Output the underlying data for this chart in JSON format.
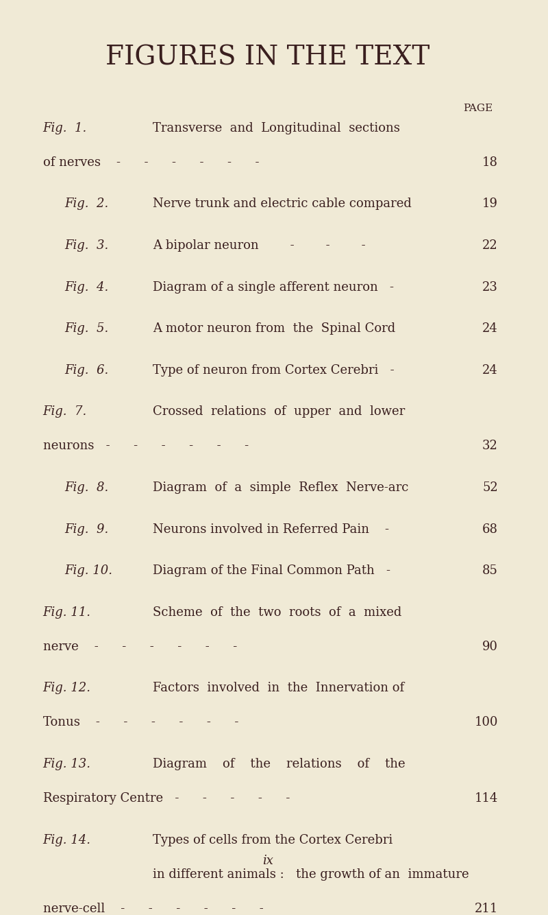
{
  "background_color": "#f0ead6",
  "text_color": "#3a1f1f",
  "title": "FIGURES IN THE TEXT",
  "page_label": "PAGE",
  "footer": "ix",
  "entries": [
    {
      "label": "Fig.  1.",
      "indent": 1,
      "line1": "Transverse  and  Longitudinal  sections",
      "line2": "of nerves    -      -      -      -      -      -",
      "page": "18",
      "two_lines": true,
      "three_lines": false
    },
    {
      "label": "Fig.  2.",
      "indent": 2,
      "line1": "Nerve trunk and electric cable compared",
      "page": "19",
      "two_lines": false,
      "three_lines": false
    },
    {
      "label": "Fig.  3.",
      "indent": 2,
      "line1": "A bipolar neuron        -        -        -",
      "page": "22",
      "two_lines": false,
      "three_lines": false
    },
    {
      "label": "Fig.  4.",
      "indent": 2,
      "line1": "Diagram of a single afferent neuron   -",
      "page": "23",
      "two_lines": false,
      "three_lines": false
    },
    {
      "label": "Fig.  5.",
      "indent": 2,
      "line1": "A motor neuron from  the  Spinal Cord",
      "page": "24",
      "two_lines": false,
      "three_lines": false
    },
    {
      "label": "Fig.  6.",
      "indent": 2,
      "line1": "Type of neuron from Cortex Cerebri   -",
      "page": "24",
      "two_lines": false,
      "three_lines": false
    },
    {
      "label": "Fig.  7.",
      "indent": 1,
      "line1": "Crossed  relations  of  upper  and  lower",
      "line2": "neurons   -      -      -      -      -      -",
      "page": "32",
      "two_lines": true,
      "three_lines": false
    },
    {
      "label": "Fig.  8.",
      "indent": 2,
      "line1": "Diagram  of  a  simple  Reflex  Nerve-arc",
      "page": "52",
      "two_lines": false,
      "three_lines": false
    },
    {
      "label": "Fig.  9.",
      "indent": 2,
      "line1": "Neurons involved in Referred Pain    -",
      "page": "68",
      "two_lines": false,
      "three_lines": false
    },
    {
      "label": "Fig. 10.",
      "indent": 2,
      "line1": "Diagram of the Final Common Path   -",
      "page": "85",
      "two_lines": false,
      "three_lines": false
    },
    {
      "label": "Fig. 11.",
      "indent": 1,
      "line1": "Scheme  of  the  two  roots  of  a  mixed",
      "line2": "nerve    -      -      -      -      -      -",
      "page": "90",
      "two_lines": true,
      "three_lines": false
    },
    {
      "label": "Fig. 12.",
      "indent": 1,
      "line1": "Factors  involved  in  the  Innervation of",
      "line2": "Tonus    -      -      -      -      -      -",
      "page": "100",
      "two_lines": true,
      "three_lines": false
    },
    {
      "label": "Fig. 13.",
      "indent": 1,
      "line1": "Diagram    of    the    relations    of    the",
      "line2": "Respiratory Centre   -      -      -      -      -",
      "page": "114",
      "two_lines": true,
      "three_lines": false
    },
    {
      "label": "Fig. 14.",
      "indent": 1,
      "line1": "Types of cells from the Cortex Cerebri",
      "line2": "in different animals :   the growth of an  immature",
      "line3": "nerve-cell    -      -      -      -      -      -",
      "page": "211",
      "two_lines": false,
      "three_lines": true
    }
  ],
  "title_fontsize": 28,
  "label_fontsize": 13,
  "text_fontsize": 13,
  "page_fontsize": 13,
  "footer_fontsize": 13
}
